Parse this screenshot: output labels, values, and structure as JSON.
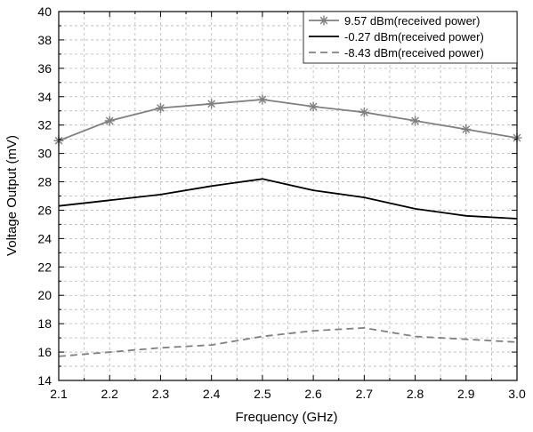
{
  "chart_data": {
    "type": "line",
    "title": "",
    "xlabel": "Frequency (GHz)",
    "ylabel": "Voltage Output (mV)",
    "xlim": [
      2.1,
      3.0
    ],
    "ylim": [
      14,
      40
    ],
    "x_ticks": [
      "2.1",
      "2.2",
      "2.3",
      "2.4",
      "2.5",
      "2.6",
      "2.7",
      "2.8",
      "2.9",
      "3.0"
    ],
    "y_ticks": [
      "14",
      "16",
      "18",
      "20",
      "22",
      "24",
      "26",
      "28",
      "30",
      "32",
      "34",
      "36",
      "38",
      "40"
    ],
    "grid": true,
    "legend_position": "top-right",
    "x": [
      2.1,
      2.2,
      2.3,
      2.4,
      2.5,
      2.6,
      2.7,
      2.8,
      2.9,
      3.0
    ],
    "series": [
      {
        "name": "9.57 dBm(received power)",
        "values": [
          30.9,
          32.3,
          33.2,
          33.5,
          33.8,
          33.3,
          32.9,
          32.3,
          31.7,
          31.1
        ],
        "style": "solid",
        "marker": "asterisk",
        "color": "#808080"
      },
      {
        "name": "-0.27 dBm(received power)",
        "values": [
          26.3,
          26.7,
          27.1,
          27.7,
          28.2,
          27.4,
          26.9,
          26.1,
          25.6,
          25.4
        ],
        "style": "solid",
        "marker": "none",
        "color": "#000000"
      },
      {
        "name": "-8.43 dBm(received power)",
        "values": [
          15.7,
          16.0,
          16.3,
          16.5,
          17.1,
          17.5,
          17.7,
          17.1,
          16.9,
          16.7
        ],
        "style": "dashed",
        "marker": "none",
        "color": "#808080"
      }
    ]
  }
}
